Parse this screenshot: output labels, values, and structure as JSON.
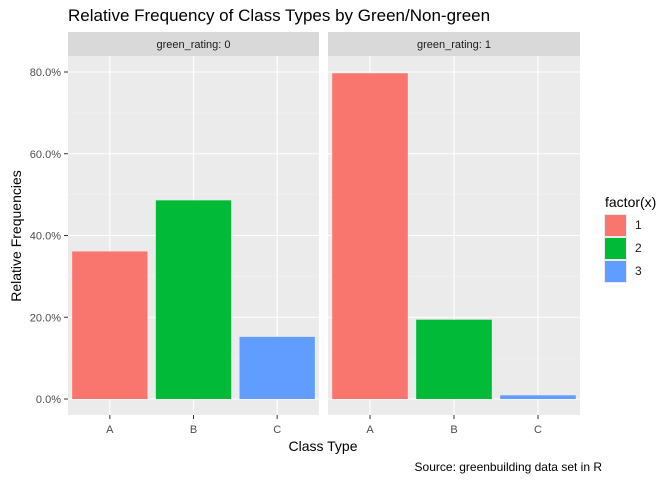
{
  "chart_data": {
    "type": "bar",
    "title": "Relative Frequency of Class Types by Green/Non-green",
    "xlabel": "Class Type",
    "ylabel": "Relative Frequencies",
    "caption": "Source: greenbuilding data set in R",
    "categories": [
      "A",
      "B",
      "C"
    ],
    "ylim": [
      0,
      0.86
    ],
    "yticks": [
      0,
      0.2,
      0.4,
      0.6,
      0.8
    ],
    "ytick_labels": [
      "0.0%",
      "20.0%",
      "40.0%",
      "60.0%",
      "80.0%"
    ],
    "grid": true,
    "legend": {
      "title": "factor(x)",
      "position": "right",
      "entries": [
        {
          "label": "1",
          "color": "#F8766D"
        },
        {
          "label": "2",
          "color": "#00BA38"
        },
        {
          "label": "3",
          "color": "#619CFF"
        }
      ]
    },
    "panels": [
      {
        "strip": "green_rating: 0",
        "values": [
          0.361,
          0.486,
          0.152
        ]
      },
      {
        "strip": "green_rating: 1",
        "values": [
          0.797,
          0.194,
          0.009
        ]
      }
    ]
  }
}
